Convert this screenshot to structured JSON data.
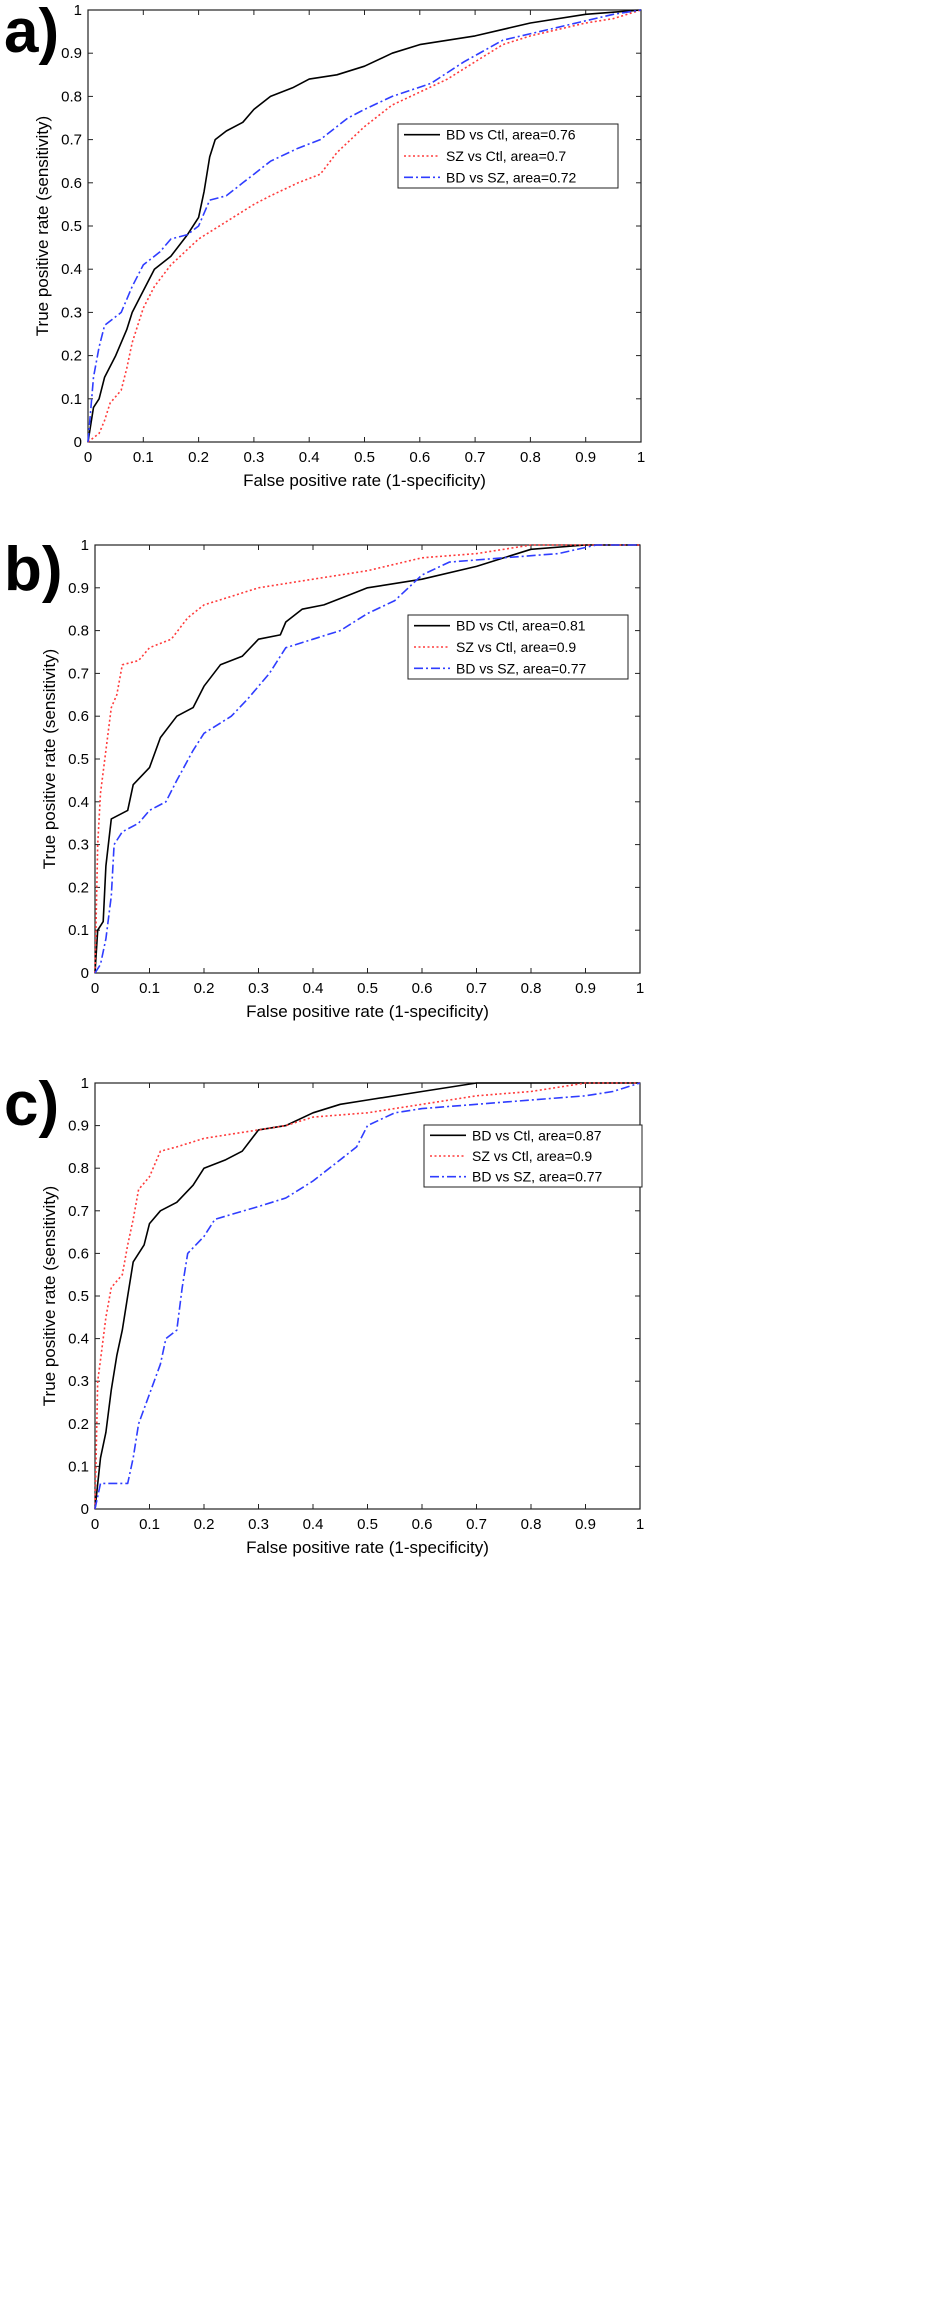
{
  "chart_data": [
    {
      "type": "line",
      "panel_label": "a)",
      "xlabel": "False positive rate (1-specificity)",
      "ylabel": "True positive rate (sensitivity)",
      "xlim": [
        0,
        1
      ],
      "ylim": [
        0,
        1
      ],
      "xticks": [
        "0",
        "0.1",
        "0.2",
        "0.3",
        "0.4",
        "0.5",
        "0.6",
        "0.7",
        "0.8",
        "0.9",
        "1"
      ],
      "yticks": [
        "0",
        "0.1",
        "0.2",
        "0.3",
        "0.4",
        "0.5",
        "0.6",
        "0.7",
        "0.8",
        "0.9",
        "1"
      ],
      "grid": false,
      "legend_position": "right-middle",
      "series": [
        {
          "name": "BD vs Ctl, area=0.76",
          "color": "#000000",
          "dash": "solid",
          "points": [
            [
              0,
              0
            ],
            [
              0.01,
              0.08
            ],
            [
              0.02,
              0.1
            ],
            [
              0.03,
              0.15
            ],
            [
              0.05,
              0.2
            ],
            [
              0.07,
              0.26
            ],
            [
              0.08,
              0.3
            ],
            [
              0.1,
              0.35
            ],
            [
              0.12,
              0.4
            ],
            [
              0.15,
              0.43
            ],
            [
              0.18,
              0.48
            ],
            [
              0.2,
              0.52
            ],
            [
              0.21,
              0.58
            ],
            [
              0.22,
              0.66
            ],
            [
              0.23,
              0.7
            ],
            [
              0.25,
              0.72
            ],
            [
              0.28,
              0.74
            ],
            [
              0.3,
              0.77
            ],
            [
              0.33,
              0.8
            ],
            [
              0.37,
              0.82
            ],
            [
              0.4,
              0.84
            ],
            [
              0.45,
              0.85
            ],
            [
              0.5,
              0.87
            ],
            [
              0.55,
              0.9
            ],
            [
              0.6,
              0.92
            ],
            [
              0.7,
              0.94
            ],
            [
              0.8,
              0.97
            ],
            [
              0.9,
              0.99
            ],
            [
              1,
              1
            ]
          ]
        },
        {
          "name": "SZ vs Ctl, area=0.7",
          "color": "#ff3b3b",
          "dash": "dotted",
          "points": [
            [
              0,
              0
            ],
            [
              0.02,
              0.02
            ],
            [
              0.03,
              0.05
            ],
            [
              0.04,
              0.09
            ],
            [
              0.06,
              0.12
            ],
            [
              0.07,
              0.17
            ],
            [
              0.08,
              0.23
            ],
            [
              0.1,
              0.31
            ],
            [
              0.12,
              0.36
            ],
            [
              0.15,
              0.41
            ],
            [
              0.2,
              0.47
            ],
            [
              0.25,
              0.51
            ],
            [
              0.3,
              0.55
            ],
            [
              0.33,
              0.57
            ],
            [
              0.38,
              0.6
            ],
            [
              0.42,
              0.62
            ],
            [
              0.45,
              0.67
            ],
            [
              0.5,
              0.73
            ],
            [
              0.55,
              0.78
            ],
            [
              0.6,
              0.81
            ],
            [
              0.65,
              0.84
            ],
            [
              0.7,
              0.88
            ],
            [
              0.75,
              0.92
            ],
            [
              0.8,
              0.94
            ],
            [
              0.9,
              0.97
            ],
            [
              0.95,
              0.98
            ],
            [
              1,
              1
            ]
          ]
        },
        {
          "name": "BD vs SZ, area=0.72",
          "color": "#2f3dff",
          "dash": "dashdot",
          "points": [
            [
              0,
              0
            ],
            [
              0.01,
              0.15
            ],
            [
              0.02,
              0.22
            ],
            [
              0.03,
              0.27
            ],
            [
              0.06,
              0.3
            ],
            [
              0.08,
              0.36
            ],
            [
              0.1,
              0.41
            ],
            [
              0.13,
              0.44
            ],
            [
              0.15,
              0.47
            ],
            [
              0.18,
              0.48
            ],
            [
              0.2,
              0.5
            ],
            [
              0.22,
              0.56
            ],
            [
              0.25,
              0.57
            ],
            [
              0.28,
              0.6
            ],
            [
              0.3,
              0.62
            ],
            [
              0.33,
              0.65
            ],
            [
              0.38,
              0.68
            ],
            [
              0.42,
              0.7
            ],
            [
              0.47,
              0.75
            ],
            [
              0.5,
              0.77
            ],
            [
              0.55,
              0.8
            ],
            [
              0.62,
              0.83
            ],
            [
              0.68,
              0.88
            ],
            [
              0.75,
              0.93
            ],
            [
              0.85,
              0.96
            ],
            [
              0.95,
              0.99
            ],
            [
              1,
              1
            ]
          ]
        }
      ]
    },
    {
      "type": "line",
      "panel_label": "b)",
      "xlabel": "False positive rate (1-specificity)",
      "ylabel": "True positive rate (sensitivity)",
      "xlim": [
        0,
        1
      ],
      "ylim": [
        0,
        1
      ],
      "xticks": [
        "0",
        "0.1",
        "0.2",
        "0.3",
        "0.4",
        "0.5",
        "0.6",
        "0.7",
        "0.8",
        "0.9",
        "1"
      ],
      "yticks": [
        "0",
        "0.1",
        "0.2",
        "0.3",
        "0.4",
        "0.5",
        "0.6",
        "0.7",
        "0.8",
        "0.9",
        "1"
      ],
      "grid": false,
      "legend_position": "top-right",
      "series": [
        {
          "name": "BD vs Ctl, area=0.81",
          "color": "#000000",
          "dash": "solid",
          "points": [
            [
              0,
              0
            ],
            [
              0.005,
              0.1
            ],
            [
              0.015,
              0.12
            ],
            [
              0.02,
              0.25
            ],
            [
              0.03,
              0.36
            ],
            [
              0.06,
              0.38
            ],
            [
              0.07,
              0.44
            ],
            [
              0.1,
              0.48
            ],
            [
              0.12,
              0.55
            ],
            [
              0.15,
              0.6
            ],
            [
              0.18,
              0.62
            ],
            [
              0.2,
              0.67
            ],
            [
              0.23,
              0.72
            ],
            [
              0.27,
              0.74
            ],
            [
              0.3,
              0.78
            ],
            [
              0.34,
              0.79
            ],
            [
              0.35,
              0.82
            ],
            [
              0.38,
              0.85
            ],
            [
              0.42,
              0.86
            ],
            [
              0.46,
              0.88
            ],
            [
              0.5,
              0.9
            ],
            [
              0.6,
              0.92
            ],
            [
              0.7,
              0.95
            ],
            [
              0.8,
              0.99
            ],
            [
              0.9,
              1
            ],
            [
              1,
              1
            ]
          ]
        },
        {
          "name": "SZ vs Ctl, area=0.9",
          "color": "#ff3b3b",
          "dash": "dotted",
          "points": [
            [
              0,
              0
            ],
            [
              0.005,
              0.3
            ],
            [
              0.01,
              0.42
            ],
            [
              0.02,
              0.52
            ],
            [
              0.03,
              0.62
            ],
            [
              0.04,
              0.65
            ],
            [
              0.05,
              0.72
            ],
            [
              0.08,
              0.73
            ],
            [
              0.1,
              0.76
            ],
            [
              0.14,
              0.78
            ],
            [
              0.17,
              0.83
            ],
            [
              0.2,
              0.86
            ],
            [
              0.25,
              0.88
            ],
            [
              0.3,
              0.9
            ],
            [
              0.4,
              0.92
            ],
            [
              0.5,
              0.94
            ],
            [
              0.6,
              0.97
            ],
            [
              0.7,
              0.98
            ],
            [
              0.8,
              1
            ],
            [
              1,
              1
            ]
          ]
        },
        {
          "name": "BD vs SZ, area=0.77",
          "color": "#2f3dff",
          "dash": "dashdot",
          "points": [
            [
              0,
              0
            ],
            [
              0.01,
              0.02
            ],
            [
              0.02,
              0.08
            ],
            [
              0.03,
              0.18
            ],
            [
              0.035,
              0.3
            ],
            [
              0.05,
              0.33
            ],
            [
              0.08,
              0.35
            ],
            [
              0.1,
              0.38
            ],
            [
              0.13,
              0.4
            ],
            [
              0.15,
              0.45
            ],
            [
              0.18,
              0.52
            ],
            [
              0.2,
              0.56
            ],
            [
              0.25,
              0.6
            ],
            [
              0.28,
              0.64
            ],
            [
              0.32,
              0.7
            ],
            [
              0.35,
              0.76
            ],
            [
              0.4,
              0.78
            ],
            [
              0.45,
              0.8
            ],
            [
              0.5,
              0.84
            ],
            [
              0.55,
              0.87
            ],
            [
              0.6,
              0.93
            ],
            [
              0.65,
              0.96
            ],
            [
              0.75,
              0.97
            ],
            [
              0.85,
              0.98
            ],
            [
              0.92,
              1
            ],
            [
              1,
              1
            ]
          ]
        }
      ]
    },
    {
      "type": "line",
      "panel_label": "c)",
      "xlabel": "False positive rate (1-specificity)",
      "ylabel": "True positive rate (sensitivity)",
      "xlim": [
        0,
        1
      ],
      "ylim": [
        0,
        1
      ],
      "xticks": [
        "0",
        "0.1",
        "0.2",
        "0.3",
        "0.4",
        "0.5",
        "0.6",
        "0.7",
        "0.8",
        "0.9",
        "1"
      ],
      "yticks": [
        "0",
        "0.1",
        "0.2",
        "0.3",
        "0.4",
        "0.5",
        "0.6",
        "0.7",
        "0.8",
        "0.9",
        "1"
      ],
      "grid": false,
      "legend_position": "top-right",
      "series": [
        {
          "name": "BD vs Ctl, area=0.87",
          "color": "#000000",
          "dash": "solid",
          "points": [
            [
              0,
              0
            ],
            [
              0.01,
              0.12
            ],
            [
              0.02,
              0.18
            ],
            [
              0.03,
              0.28
            ],
            [
              0.04,
              0.36
            ],
            [
              0.05,
              0.42
            ],
            [
              0.06,
              0.5
            ],
            [
              0.07,
              0.58
            ],
            [
              0.09,
              0.62
            ],
            [
              0.1,
              0.67
            ],
            [
              0.12,
              0.7
            ],
            [
              0.15,
              0.72
            ],
            [
              0.18,
              0.76
            ],
            [
              0.2,
              0.8
            ],
            [
              0.24,
              0.82
            ],
            [
              0.27,
              0.84
            ],
            [
              0.3,
              0.89
            ],
            [
              0.35,
              0.9
            ],
            [
              0.4,
              0.93
            ],
            [
              0.45,
              0.95
            ],
            [
              0.5,
              0.96
            ],
            [
              0.6,
              0.98
            ],
            [
              0.7,
              1
            ],
            [
              1,
              1
            ]
          ]
        },
        {
          "name": "SZ vs Ctl, area=0.9",
          "color": "#ff3b3b",
          "dash": "dotted",
          "points": [
            [
              0,
              0
            ],
            [
              0.005,
              0.3
            ],
            [
              0.01,
              0.35
            ],
            [
              0.02,
              0.45
            ],
            [
              0.03,
              0.52
            ],
            [
              0.05,
              0.55
            ],
            [
              0.06,
              0.62
            ],
            [
              0.07,
              0.68
            ],
            [
              0.08,
              0.75
            ],
            [
              0.1,
              0.78
            ],
            [
              0.12,
              0.84
            ],
            [
              0.15,
              0.85
            ],
            [
              0.2,
              0.87
            ],
            [
              0.25,
              0.88
            ],
            [
              0.3,
              0.89
            ],
            [
              0.35,
              0.9
            ],
            [
              0.4,
              0.92
            ],
            [
              0.5,
              0.93
            ],
            [
              0.6,
              0.95
            ],
            [
              0.7,
              0.97
            ],
            [
              0.8,
              0.98
            ],
            [
              0.9,
              1
            ],
            [
              1,
              1
            ]
          ]
        },
        {
          "name": "BD vs SZ, area=0.77",
          "color": "#2f3dff",
          "dash": "dashdot",
          "points": [
            [
              0,
              0
            ],
            [
              0.01,
              0.06
            ],
            [
              0.06,
              0.06
            ],
            [
              0.07,
              0.12
            ],
            [
              0.08,
              0.2
            ],
            [
              0.1,
              0.27
            ],
            [
              0.12,
              0.34
            ],
            [
              0.13,
              0.4
            ],
            [
              0.15,
              0.42
            ],
            [
              0.16,
              0.52
            ],
            [
              0.17,
              0.6
            ],
            [
              0.2,
              0.64
            ],
            [
              0.22,
              0.68
            ],
            [
              0.3,
              0.71
            ],
            [
              0.35,
              0.73
            ],
            [
              0.4,
              0.77
            ],
            [
              0.45,
              0.82
            ],
            [
              0.48,
              0.85
            ],
            [
              0.5,
              0.9
            ],
            [
              0.55,
              0.93
            ],
            [
              0.6,
              0.94
            ],
            [
              0.7,
              0.95
            ],
            [
              0.8,
              0.96
            ],
            [
              0.9,
              0.97
            ],
            [
              0.95,
              0.98
            ],
            [
              1,
              1
            ]
          ]
        }
      ]
    }
  ]
}
